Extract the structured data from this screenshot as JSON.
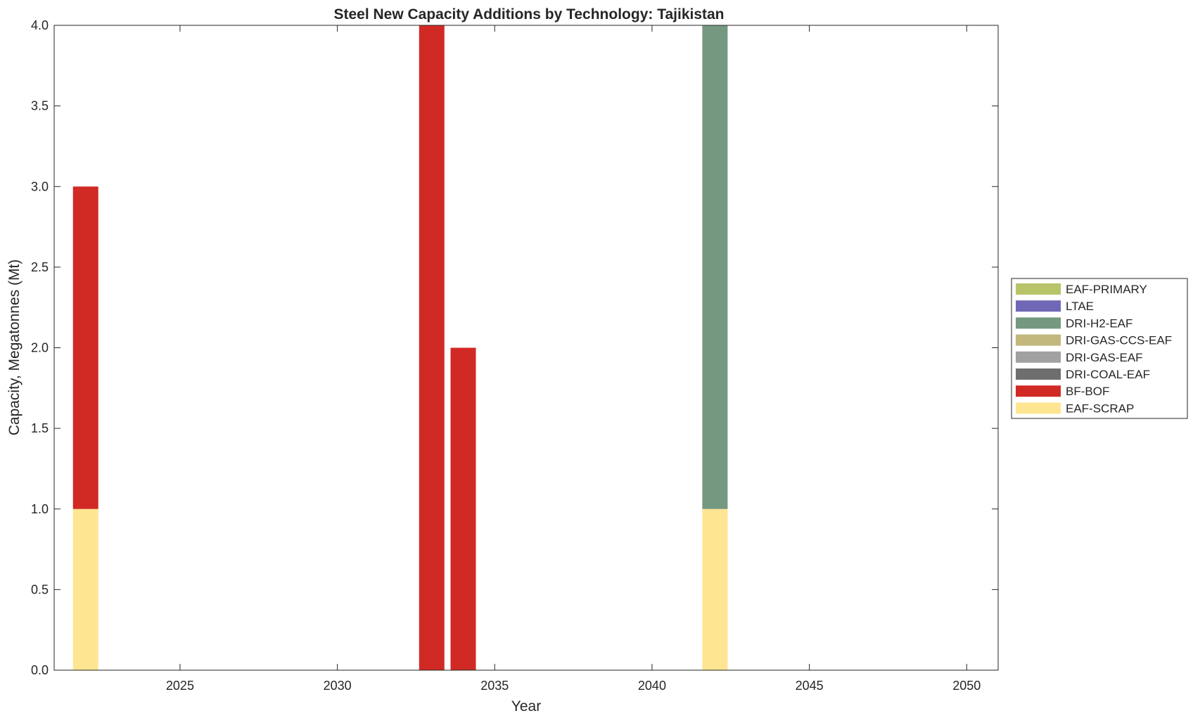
{
  "chart_data": {
    "type": "bar",
    "stacked": true,
    "title": "Steel New Capacity Additions by Technology: Tajikistan",
    "xlabel": "Year",
    "ylabel": "Capacity, Megatonnes (Mt)",
    "xlim": [
      2021,
      2051
    ],
    "ylim": [
      0,
      4
    ],
    "x_ticks": [
      2025,
      2030,
      2035,
      2040,
      2045,
      2050
    ],
    "y_ticks": [
      0.0,
      0.5,
      1.0,
      1.5,
      2.0,
      2.5,
      3.0,
      3.5,
      4.0
    ],
    "x_tick_labels": [
      "2025",
      "2030",
      "2035",
      "2040",
      "2045",
      "2050"
    ],
    "y_tick_labels": [
      "0.0",
      "0.5",
      "1.0",
      "1.5",
      "2.0",
      "2.5",
      "3.0",
      "3.5",
      "4.0"
    ],
    "grid": false,
    "legend_position": "right",
    "x": [
      2022,
      2033,
      2034,
      2042
    ],
    "series": [
      {
        "name": "EAF-SCRAP",
        "color": "#fee592",
        "values": [
          1,
          0,
          0,
          1
        ]
      },
      {
        "name": "BF-BOF",
        "color": "#d12a25",
        "values": [
          2,
          4,
          2,
          0
        ]
      },
      {
        "name": "DRI-COAL-EAF",
        "color": "#6e6e6e",
        "values": [
          0,
          0,
          0,
          0
        ]
      },
      {
        "name": "DRI-GAS-EAF",
        "color": "#a1a1a1",
        "values": [
          0,
          0,
          0,
          0
        ]
      },
      {
        "name": "DRI-GAS-CCS-EAF",
        "color": "#c2b87c",
        "values": [
          0,
          0,
          0,
          0
        ]
      },
      {
        "name": "DRI-H2-EAF",
        "color": "#749880",
        "values": [
          0,
          0,
          0,
          3
        ]
      },
      {
        "name": "LTAE",
        "color": "#7068b7",
        "values": [
          0,
          0,
          0,
          0
        ]
      },
      {
        "name": "EAF-PRIMARY",
        "color": "#b9c46a",
        "values": [
          0,
          0,
          0,
          0
        ]
      }
    ],
    "legend_order": [
      "EAF-PRIMARY",
      "LTAE",
      "DRI-H2-EAF",
      "DRI-GAS-CCS-EAF",
      "DRI-GAS-EAF",
      "DRI-COAL-EAF",
      "BF-BOF",
      "EAF-SCRAP"
    ]
  }
}
